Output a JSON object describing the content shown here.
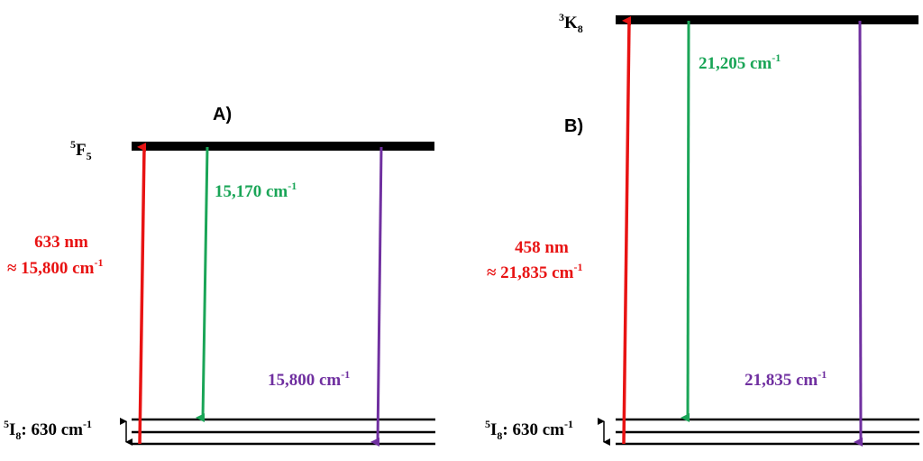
{
  "colors": {
    "excitation": "#e81313",
    "emission_green": "#1aa557",
    "emission_purple": "#7030a0",
    "level": "#000000"
  },
  "panel_a": {
    "label": "A)",
    "upper_level": {
      "symbol": "F",
      "superscript": "5",
      "subscript": "5"
    },
    "excitation": {
      "line1": "633 nm",
      "line2_prefix": "≈ 15,800 cm",
      "line2_exp": "-1"
    },
    "green_emission": {
      "base": "15,170 cm",
      "exp": "-1"
    },
    "purple_emission": {
      "base": "15,800 cm",
      "exp": "-1"
    },
    "ground_level": {
      "symbol": "I",
      "superscript": "5",
      "subscript": "8",
      "suffix": ": 630 cm",
      "exp": "-1"
    }
  },
  "panel_b": {
    "label": "B)",
    "upper_level": {
      "symbol": "K",
      "superscript": "3",
      "subscript": "8"
    },
    "excitation": {
      "line1": "458 nm",
      "line2_prefix": "≈ 21,835 cm",
      "line2_exp": "-1"
    },
    "green_emission": {
      "base": "21,205 cm",
      "exp": "-1"
    },
    "purple_emission": {
      "base": "21,835 cm",
      "exp": "-1"
    },
    "ground_level": {
      "symbol": "I",
      "superscript": "5",
      "subscript": "8",
      "suffix": ": 630 cm",
      "exp": "-1"
    }
  }
}
